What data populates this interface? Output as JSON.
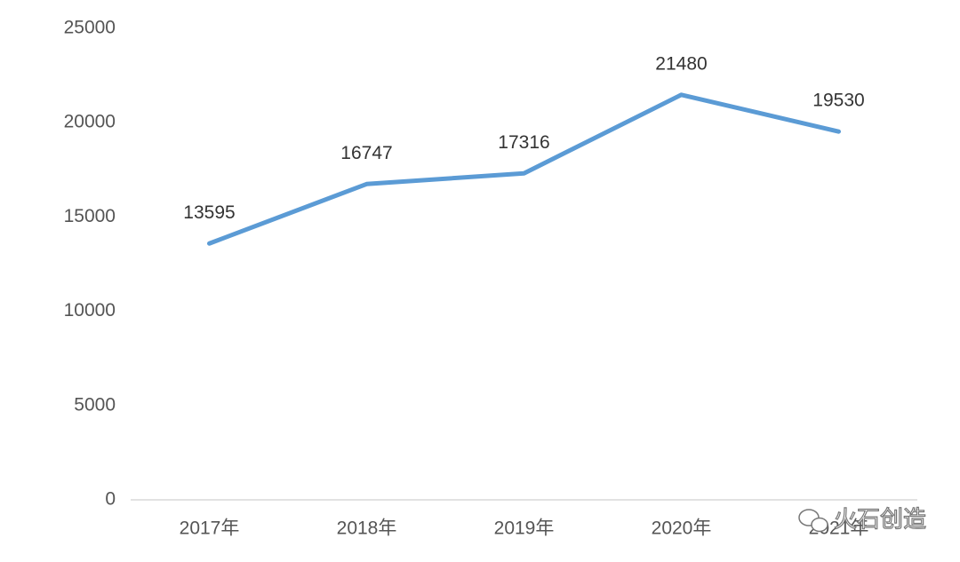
{
  "chart_data": {
    "type": "line",
    "categories": [
      "2017年",
      "2018年",
      "2019年",
      "2020年",
      "2021年"
    ],
    "series": [
      {
        "color": "#5b9bd5",
        "values": [
          13595,
          16747,
          17316,
          21480,
          19530
        ]
      }
    ],
    "ylim": [
      0,
      25000
    ],
    "yticks": [
      0,
      5000,
      10000,
      15000,
      20000,
      25000
    ],
    "grid": false,
    "data_labels": true,
    "watermark": "火石创造"
  }
}
